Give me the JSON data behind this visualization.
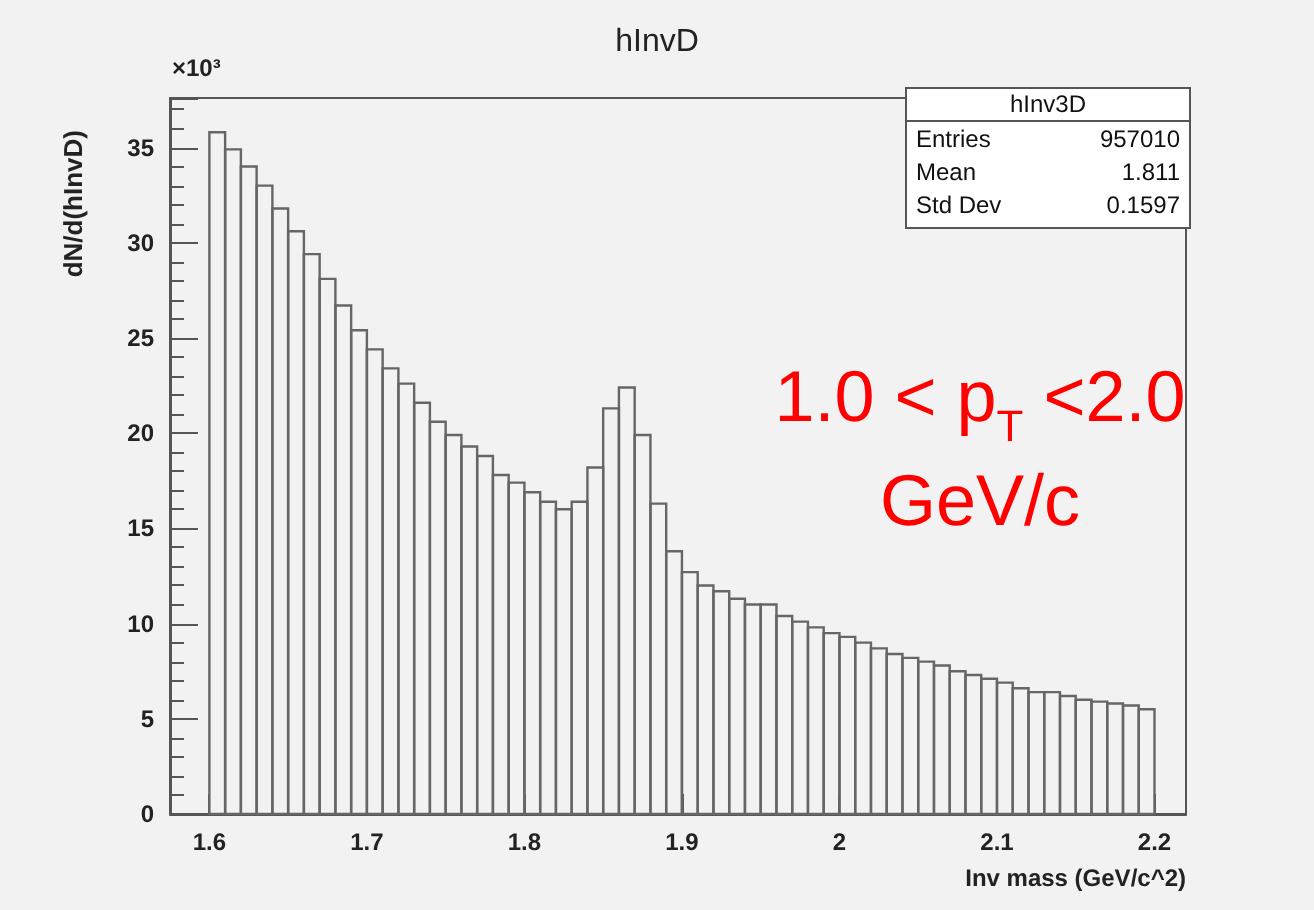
{
  "chart_data": {
    "type": "histogram",
    "title": "hInvD",
    "xlabel": "Inv mass (GeV/c^2)",
    "ylabel": "dN/d(hInvD)",
    "annotations": [
      "×10³",
      "1.0 < p$_{T}$ <2.0\nGeV/c",
      "hInv3D",
      "Entries 957010",
      "Mean 1.811",
      "Std Dev 0.1597"
    ],
    "bins": [
      1.6,
      1.61,
      1.62,
      1.63,
      1.64,
      1.65,
      1.66,
      1.67,
      1.68,
      1.69,
      1.7,
      1.71,
      1.72,
      1.73,
      1.74,
      1.75,
      1.76,
      1.77,
      1.78,
      1.79,
      1.8,
      1.81,
      1.82,
      1.83,
      1.84,
      1.85,
      1.86,
      1.87,
      1.88,
      1.89,
      1.9,
      1.91,
      1.92,
      1.93,
      1.94,
      1.95,
      1.96,
      1.97,
      1.98,
      1.99,
      2.0,
      2.01,
      2.02,
      2.03,
      2.04,
      2.05,
      2.06,
      2.07,
      2.08,
      2.09,
      2.1,
      2.11,
      2.12,
      2.13,
      2.14,
      2.15,
      2.16,
      2.17,
      2.18,
      2.19,
      2.2
    ],
    "values": [
      35.8,
      34.9,
      34.0,
      33.0,
      31.8,
      30.6,
      29.4,
      28.1,
      26.7,
      25.4,
      24.4,
      23.4,
      22.6,
      21.6,
      20.6,
      19.9,
      19.3,
      18.8,
      17.8,
      17.4,
      16.9,
      16.4,
      16.0,
      16.4,
      18.2,
      21.3,
      22.4,
      19.9,
      16.3,
      13.8,
      12.7,
      12.0,
      11.7,
      11.3,
      11.0,
      11.0,
      10.4,
      10.1,
      9.8,
      9.5,
      9.3,
      9.0,
      8.7,
      8.4,
      8.2,
      8.0,
      7.8,
      7.5,
      7.3,
      7.1,
      6.9,
      6.6,
      6.4,
      6.4,
      6.2,
      6.0,
      5.9,
      5.8,
      5.7,
      5.5
    ],
    "color": "#666666",
    "xlim": [
      1.575,
      2.22
    ],
    "xticks": [
      1.6,
      1.7,
      1.8,
      1.9,
      2,
      2.1,
      2.2
    ],
    "ylim": [
      0,
      37.6
    ],
    "yticks": [
      0,
      5,
      10,
      15,
      20,
      25,
      30,
      35
    ],
    "grid": false
  }
}
